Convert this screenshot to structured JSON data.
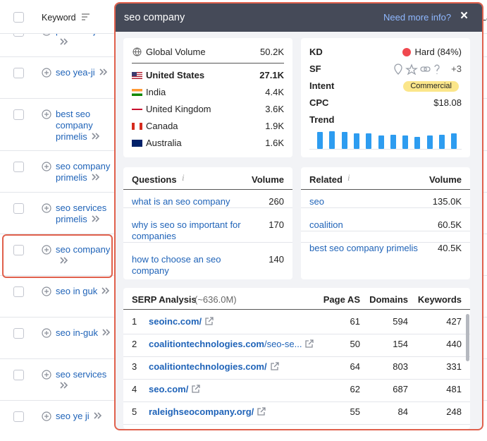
{
  "keyword_table": {
    "header": "Keyword",
    "next_column_header": "La",
    "rows": [
      "park seo joon",
      "seo yea-ji",
      "best seo company primelis",
      "seo company primelis",
      "seo services primelis",
      "seo company",
      "seo in guk",
      "seo in-guk",
      "seo services",
      "seo ye ji"
    ]
  },
  "popup": {
    "title": "seo company",
    "help_link": "Need more info?",
    "close": "×",
    "volume": {
      "global_label": "Global Volume",
      "global_value": "50.2K",
      "countries": [
        {
          "name": "United States",
          "value": "27.1K"
        },
        {
          "name": "India",
          "value": "4.4K"
        },
        {
          "name": "United Kingdom",
          "value": "3.6K"
        },
        {
          "name": "Canada",
          "value": "1.9K"
        },
        {
          "name": "Australia",
          "value": "1.6K"
        }
      ]
    },
    "metrics": {
      "kd_label": "KD",
      "kd_value": "Hard (84%)",
      "sf_label": "SF",
      "sf_extra": "+3",
      "intent_label": "Intent",
      "intent_value": "Commercial",
      "cpc_label": "CPC",
      "cpc_value": "$18.08",
      "trend_label": "Trend",
      "trend": [
        95,
        100,
        95,
        90,
        90,
        75,
        80,
        75,
        70,
        75,
        80,
        90
      ]
    },
    "questions": {
      "header": "Questions",
      "volume_header": "Volume",
      "rows": [
        {
          "text": "what is an seo company",
          "volume": 260
        },
        {
          "text": "why is seo so important for companies",
          "volume": 170
        },
        {
          "text": "how to choose an seo company",
          "volume": 140
        }
      ]
    },
    "related": {
      "header": "Related",
      "volume_header": "Volume",
      "rows": [
        {
          "text": "seo",
          "volume": "135.0K"
        },
        {
          "text": "coalition",
          "volume": "60.5K"
        },
        {
          "text": "best seo company primelis",
          "volume": "40.5K"
        }
      ]
    },
    "serp": {
      "title": "SERP Analysis",
      "total": "(~636.0M)",
      "columns": [
        "Page AS",
        "Domains",
        "Keywords"
      ],
      "rows": [
        {
          "rank": 1,
          "domain": "seoinc.com/",
          "page_as": 61,
          "domains": 594,
          "keywords": 427
        },
        {
          "rank": 2,
          "domain": "coalitiontechnologies.com",
          "path": "/seo-se...",
          "page_as": 50,
          "domains": 154,
          "keywords": 440
        },
        {
          "rank": 3,
          "domain": "coalitiontechnologies.com/",
          "page_as": 64,
          "domains": 803,
          "keywords": 331
        },
        {
          "rank": 4,
          "domain": "seo.com/",
          "page_as": 62,
          "domains": 687,
          "keywords": 481
        },
        {
          "rank": 5,
          "domain": "raleighseocompany.org/",
          "page_as": 55,
          "domains": 84,
          "keywords": 248
        }
      ]
    }
  }
}
